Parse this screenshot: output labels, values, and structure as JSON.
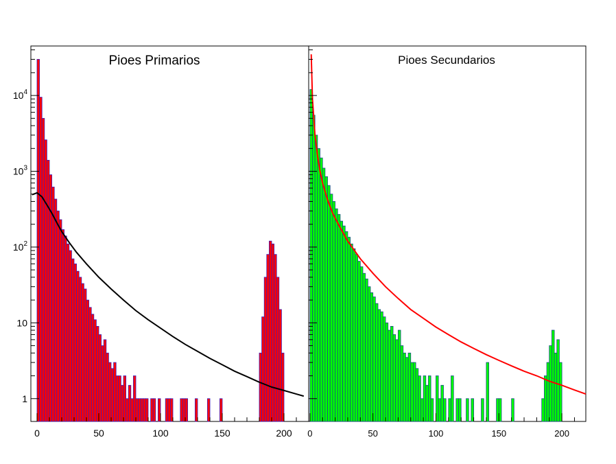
{
  "chart_data": [
    {
      "type": "histogram",
      "title": "Pioes Primarios",
      "xlim": [
        -5,
        220
      ],
      "ylog": true,
      "ylim": [
        0.5,
        40000
      ],
      "x_ticks": [
        "0",
        "50",
        "100",
        "150",
        "200"
      ],
      "y_ticks": [
        "1",
        "10",
        "10^2",
        "10^3",
        "10^4"
      ],
      "bin_width": 2,
      "fill_color": "#ff0000",
      "line_color": "#3a1fbe",
      "fit_color": "#000000",
      "bins": [
        [
          0,
          30000
        ],
        [
          2,
          9500
        ],
        [
          4,
          5000
        ],
        [
          6,
          2600
        ],
        [
          8,
          1400
        ],
        [
          10,
          900
        ],
        [
          12,
          620
        ],
        [
          14,
          430
        ],
        [
          16,
          300
        ],
        [
          18,
          230
        ],
        [
          20,
          170
        ],
        [
          22,
          140
        ],
        [
          24,
          110
        ],
        [
          26,
          90
        ],
        [
          28,
          70
        ],
        [
          30,
          60
        ],
        [
          32,
          48
        ],
        [
          34,
          40
        ],
        [
          36,
          33
        ],
        [
          38,
          28
        ],
        [
          40,
          20
        ],
        [
          42,
          16
        ],
        [
          44,
          13
        ],
        [
          46,
          11
        ],
        [
          48,
          9
        ],
        [
          50,
          7
        ],
        [
          52,
          5
        ],
        [
          54,
          6
        ],
        [
          56,
          4
        ],
        [
          58,
          3
        ],
        [
          60,
          2.5
        ],
        [
          62,
          3
        ],
        [
          64,
          2
        ],
        [
          66,
          2
        ],
        [
          68,
          1.5
        ],
        [
          70,
          2
        ],
        [
          72,
          1
        ],
        [
          74,
          1.5
        ],
        [
          76,
          1
        ],
        [
          78,
          2
        ],
        [
          80,
          1
        ],
        [
          82,
          1
        ],
        [
          84,
          1
        ],
        [
          86,
          1
        ],
        [
          88,
          1
        ],
        [
          92,
          1
        ],
        [
          94,
          1
        ],
        [
          98,
          1
        ],
        [
          104,
          1
        ],
        [
          106,
          1
        ],
        [
          108,
          1
        ],
        [
          116,
          1
        ],
        [
          118,
          1
        ],
        [
          120,
          1
        ],
        [
          128,
          1
        ],
        [
          138,
          1
        ],
        [
          148,
          1
        ],
        [
          180,
          4
        ],
        [
          182,
          12
        ],
        [
          184,
          40
        ],
        [
          186,
          80
        ],
        [
          188,
          120
        ],
        [
          190,
          110
        ],
        [
          192,
          80
        ],
        [
          194,
          40
        ],
        [
          196,
          15
        ],
        [
          198,
          4
        ]
      ],
      "fit": [
        [
          -4,
          490
        ],
        [
          0,
          520
        ],
        [
          4,
          460
        ],
        [
          8,
          360
        ],
        [
          12,
          280
        ],
        [
          16,
          210
        ],
        [
          20,
          160
        ],
        [
          26,
          115
        ],
        [
          32,
          85
        ],
        [
          40,
          60
        ],
        [
          50,
          40
        ],
        [
          60,
          28
        ],
        [
          70,
          20
        ],
        [
          80,
          14.5
        ],
        [
          90,
          11
        ],
        [
          100,
          8.5
        ],
        [
          110,
          6.6
        ],
        [
          120,
          5.2
        ],
        [
          130,
          4.2
        ],
        [
          140,
          3.4
        ],
        [
          150,
          2.8
        ],
        [
          160,
          2.3
        ],
        [
          170,
          1.95
        ],
        [
          180,
          1.65
        ],
        [
          190,
          1.42
        ],
        [
          200,
          1.28
        ],
        [
          210,
          1.15
        ],
        [
          216,
          1.08
        ]
      ]
    },
    {
      "type": "histogram",
      "title": "Pioes Secundarios",
      "xlim": [
        -1,
        219
      ],
      "ylog": true,
      "ylim": [
        0.5,
        40000
      ],
      "x_ticks": [
        "0",
        "50",
        "100",
        "150",
        "200"
      ],
      "bin_width": 2,
      "fill_color": "#00ff00",
      "line_color": "#1a4a88",
      "fit_color": "#ff0000",
      "bins": [
        [
          0,
          12000
        ],
        [
          2,
          5500
        ],
        [
          4,
          3000
        ],
        [
          6,
          2000
        ],
        [
          8,
          1500
        ],
        [
          10,
          1100
        ],
        [
          12,
          850
        ],
        [
          14,
          650
        ],
        [
          16,
          500
        ],
        [
          18,
          400
        ],
        [
          20,
          320
        ],
        [
          22,
          270
        ],
        [
          24,
          220
        ],
        [
          26,
          190
        ],
        [
          28,
          160
        ],
        [
          30,
          135
        ],
        [
          32,
          110
        ],
        [
          34,
          95
        ],
        [
          36,
          80
        ],
        [
          38,
          65
        ],
        [
          40,
          55
        ],
        [
          42,
          45
        ],
        [
          44,
          38
        ],
        [
          46,
          30
        ],
        [
          48,
          25
        ],
        [
          50,
          22
        ],
        [
          52,
          18
        ],
        [
          54,
          15
        ],
        [
          56,
          14
        ],
        [
          58,
          12
        ],
        [
          60,
          10
        ],
        [
          62,
          8
        ],
        [
          64,
          9
        ],
        [
          66,
          7
        ],
        [
          68,
          6
        ],
        [
          70,
          8
        ],
        [
          72,
          5
        ],
        [
          74,
          4
        ],
        [
          76,
          3.5
        ],
        [
          78,
          4
        ],
        [
          80,
          3
        ],
        [
          82,
          3
        ],
        [
          84,
          2.5
        ],
        [
          86,
          2
        ],
        [
          88,
          1
        ],
        [
          90,
          2
        ],
        [
          92,
          1.5
        ],
        [
          94,
          2
        ],
        [
          96,
          1
        ],
        [
          100,
          2
        ],
        [
          102,
          1
        ],
        [
          104,
          1.5
        ],
        [
          106,
          1
        ],
        [
          110,
          1
        ],
        [
          112,
          2
        ],
        [
          116,
          1
        ],
        [
          118,
          1
        ],
        [
          124,
          1
        ],
        [
          128,
          1
        ],
        [
          136,
          1
        ],
        [
          140,
          3
        ],
        [
          148,
          1
        ],
        [
          150,
          1
        ],
        [
          160,
          1
        ],
        [
          184,
          1
        ],
        [
          186,
          2
        ],
        [
          188,
          3
        ],
        [
          190,
          5
        ],
        [
          192,
          8
        ],
        [
          194,
          4
        ],
        [
          196,
          6
        ],
        [
          198,
          3
        ]
      ],
      "fit": [
        [
          1,
          35000
        ],
        [
          2,
          9000
        ],
        [
          4,
          3000
        ],
        [
          6,
          1600
        ],
        [
          8,
          1000
        ],
        [
          10,
          700
        ],
        [
          14,
          420
        ],
        [
          18,
          280
        ],
        [
          24,
          180
        ],
        [
          30,
          120
        ],
        [
          40,
          70
        ],
        [
          50,
          45
        ],
        [
          60,
          30
        ],
        [
          70,
          21
        ],
        [
          80,
          15
        ],
        [
          90,
          11.5
        ],
        [
          100,
          8.8
        ],
        [
          110,
          7
        ],
        [
          120,
          5.6
        ],
        [
          130,
          4.6
        ],
        [
          140,
          3.8
        ],
        [
          150,
          3.2
        ],
        [
          160,
          2.7
        ],
        [
          170,
          2.3
        ],
        [
          180,
          2
        ],
        [
          190,
          1.7
        ],
        [
          200,
          1.5
        ],
        [
          210,
          1.3
        ],
        [
          219,
          1.15
        ]
      ]
    }
  ]
}
